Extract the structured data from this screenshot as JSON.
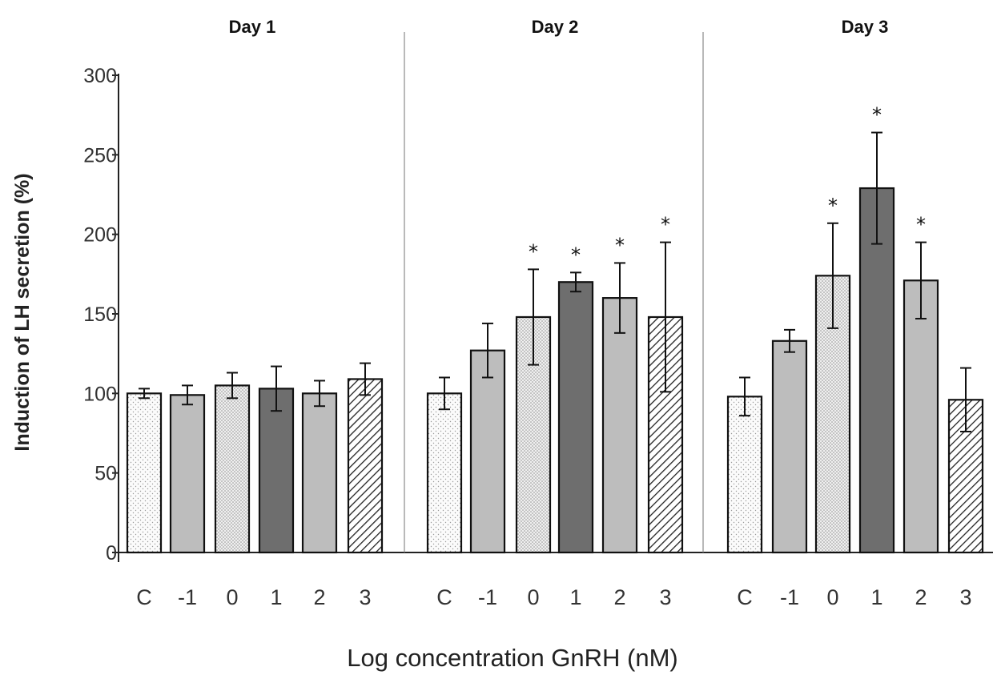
{
  "chart_data": {
    "type": "bar",
    "ylabel": "Induction of LH secretion (%)",
    "xlabel": "Log concentration GnRH (nM)",
    "ylim": [
      0,
      300
    ],
    "yticks": [
      0,
      50,
      100,
      150,
      200,
      250,
      300
    ],
    "categories": [
      "C",
      "-1",
      "0",
      "1",
      "2",
      "3"
    ],
    "category_fills": [
      "light-dots",
      "gray",
      "dense-dots",
      "dark-gray",
      "gray",
      "diagonal-hatch"
    ],
    "panels": [
      {
        "title": "Day 1",
        "values": [
          100,
          99,
          105,
          103,
          100,
          109
        ],
        "errors": [
          3,
          6,
          8,
          14,
          8,
          10
        ],
        "significant": [
          false,
          false,
          false,
          false,
          false,
          false
        ]
      },
      {
        "title": "Day 2",
        "values": [
          100,
          127,
          148,
          170,
          160,
          148
        ],
        "errors": [
          10,
          17,
          30,
          6,
          22,
          47
        ],
        "significant": [
          false,
          false,
          true,
          true,
          true,
          true
        ]
      },
      {
        "title": "Day 3",
        "values": [
          98,
          133,
          174,
          229,
          171,
          96
        ],
        "errors": [
          12,
          7,
          33,
          35,
          24,
          20
        ],
        "significant": [
          false,
          false,
          true,
          true,
          true,
          false
        ]
      }
    ],
    "significance_marker": "*",
    "colors": {
      "light": "#fafafa",
      "gray": "#bdbdbd",
      "dark": "#6e6e6e",
      "stroke": "#111111"
    }
  }
}
